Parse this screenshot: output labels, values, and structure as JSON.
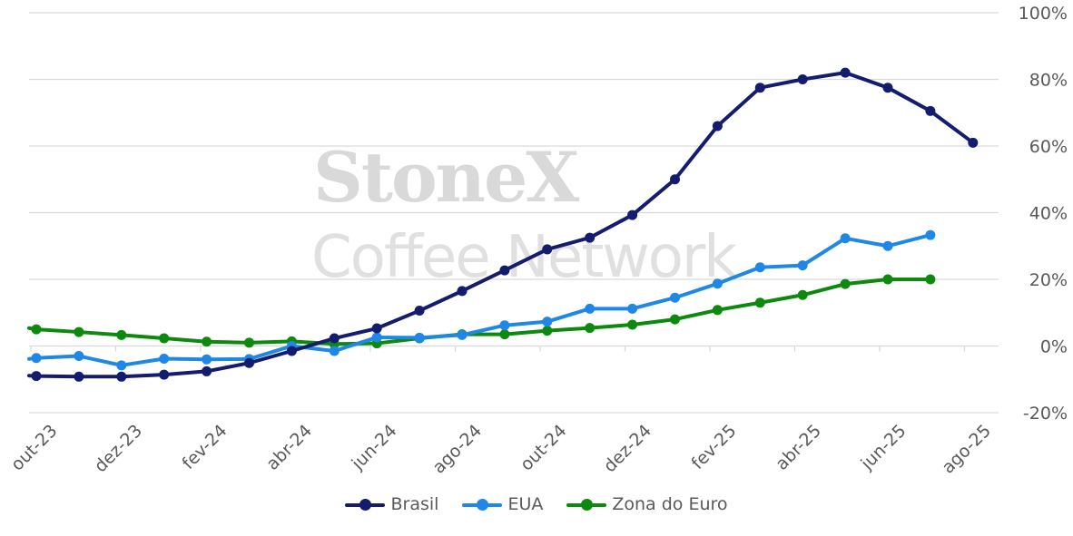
{
  "watermark": {
    "line1": "StoneX",
    "line2": "Coffee Network"
  },
  "chart_data": {
    "type": "line",
    "x_tick_labels": [
      "out-23",
      "dez-23",
      "fev-24",
      "abr-24",
      "jun-24",
      "ago-24",
      "out-24",
      "dez-24",
      "fev-25",
      "abr-25",
      "jun-25",
      "ago-25"
    ],
    "y_tick_labels": [
      "100%",
      "80%",
      "60%",
      "40%",
      "20%",
      "0%",
      "-20%"
    ],
    "ylim": [
      -20,
      100
    ],
    "y_ticks": [
      100,
      80,
      60,
      40,
      20,
      0,
      -20
    ],
    "grid": true,
    "legend_position": "bottom",
    "x": [
      "out-23",
      "nov-23",
      "dez-23",
      "jan-24",
      "fev-24",
      "mar-24",
      "abr-24",
      "mai-24",
      "jun-24",
      "jul-24",
      "ago-24",
      "set-24",
      "out-24",
      "nov-24",
      "dez-24",
      "jan-25",
      "fev-25",
      "mar-25",
      "abr-25",
      "mai-25",
      "jun-25",
      "jul-25",
      "ago-25"
    ],
    "series": [
      {
        "name": "Brasil",
        "color": "#141c6e",
        "values": [
          -9,
          -9.2,
          -9.2,
          -8.6,
          -7.6,
          -5.1,
          -1.5,
          2.3,
          5.3,
          10.6,
          16.5,
          22.7,
          29,
          32.5,
          39.3,
          50,
          66,
          77.5,
          80,
          82,
          77.5,
          70.5,
          61
        ]
      },
      {
        "name": "EUA",
        "color": "#1f88e6",
        "values": [
          -3.6,
          -3,
          -5.8,
          -3.8,
          -4,
          -3.9,
          0,
          -1.5,
          2.6,
          2.5,
          3.3,
          6.2,
          7.3,
          11.2,
          11.2,
          14.5,
          18.7,
          23.6,
          24.2,
          32.3,
          30,
          33.3,
          null
        ]
      },
      {
        "name": "Zona do Euro",
        "color": "#0d8a0d",
        "values": [
          5,
          4.2,
          3.3,
          2.3,
          1.3,
          1,
          1.4,
          0.6,
          0.8,
          2.3,
          3.5,
          3.5,
          4.6,
          5.4,
          6.4,
          8,
          10.8,
          13,
          15.3,
          18.6,
          20,
          20,
          null
        ]
      }
    ]
  }
}
